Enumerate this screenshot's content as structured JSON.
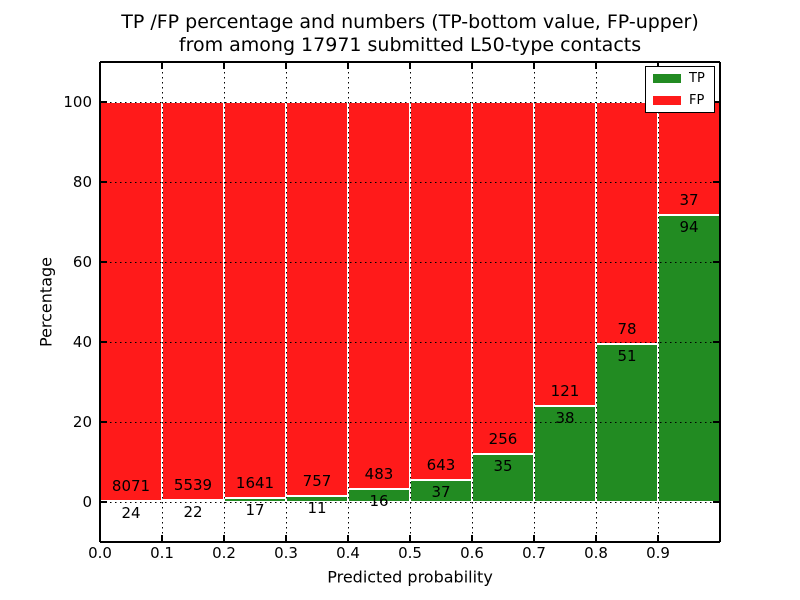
{
  "chart_data": {
    "type": "bar",
    "stacked": true,
    "percentage_normalized": true,
    "title_line1": "TP /FP percentage and numbers (TP-bottom value, FP-upper)",
    "title_line2": "from among 17971 submitted L50-type contacts",
    "total_submitted": 17971,
    "xlabel": "Predicted probability",
    "ylabel": "Percentage",
    "xlim": [
      0.0,
      1.0
    ],
    "ylim": [
      -10,
      110
    ],
    "grid": "dotted",
    "legend_position": "upper right",
    "x_tick_labels": [
      "0.0",
      "0.1",
      "0.2",
      "0.3",
      "0.4",
      "0.5",
      "0.6",
      "0.7",
      "0.8",
      "0.9"
    ],
    "y_tick_values": [
      0,
      20,
      40,
      60,
      80,
      100
    ],
    "series": [
      {
        "name": "TP",
        "color": "#228b22"
      },
      {
        "name": "FP",
        "color": "#ff1a1a"
      }
    ],
    "bar_edge_color": "#ffffff",
    "bins": [
      {
        "range": [
          0.0,
          0.1
        ],
        "tp": 24,
        "fp": 8071
      },
      {
        "range": [
          0.1,
          0.2
        ],
        "tp": 22,
        "fp": 5539
      },
      {
        "range": [
          0.2,
          0.3
        ],
        "tp": 17,
        "fp": 1641
      },
      {
        "range": [
          0.3,
          0.4
        ],
        "tp": 11,
        "fp": 757
      },
      {
        "range": [
          0.4,
          0.5
        ],
        "tp": 16,
        "fp": 483
      },
      {
        "range": [
          0.5,
          0.6
        ],
        "tp": 37,
        "fp": 643
      },
      {
        "range": [
          0.6,
          0.7
        ],
        "tp": 35,
        "fp": 256
      },
      {
        "range": [
          0.7,
          0.8
        ],
        "tp": 38,
        "fp": 121
      },
      {
        "range": [
          0.8,
          0.9
        ],
        "tp": 51,
        "fp": 78
      },
      {
        "range": [
          0.9,
          1.0
        ],
        "tp": 94,
        "fp": 37
      }
    ]
  }
}
